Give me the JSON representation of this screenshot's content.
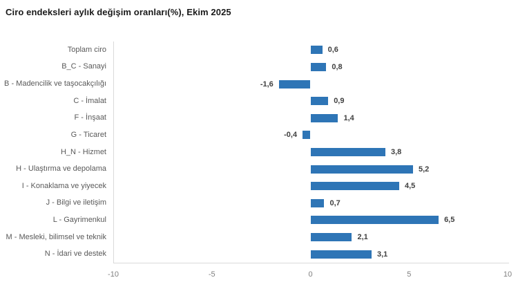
{
  "page": {
    "title": "Ciro endeksleri aylık değişim oranları(%), Ekim 2025"
  },
  "chart_data": {
    "type": "bar",
    "orientation": "horizontal",
    "title": "Ciro endeksleri aylık değişim oranları(%), Ekim 2025",
    "categories": [
      "Toplam ciro",
      "B_C - Sanayi",
      "B - Madencilik ve taşocakçılığı",
      "C - İmalat",
      "F - İnşaat",
      "G - Ticaret",
      "H_N - Hizmet",
      "H - Ulaştırma ve depolama",
      "I - Konaklama ve yiyecek",
      "J - Bilgi ve iletişim",
      "L - Gayrimenkul",
      "M - Mesleki, bilimsel ve teknik",
      "N - İdari ve destek"
    ],
    "values": [
      0.6,
      0.8,
      -1.6,
      0.9,
      1.4,
      -0.4,
      3.8,
      5.2,
      4.5,
      0.7,
      6.5,
      2.1,
      3.1
    ],
    "value_labels": [
      "0,6",
      "0,8",
      "-1,6",
      "0,9",
      "1,4",
      "-0,4",
      "3,8",
      "5,2",
      "4,5",
      "0,7",
      "6,5",
      "2,1",
      "3,1"
    ],
    "xlabel": "",
    "ylabel": "",
    "xlim": [
      -10,
      10
    ],
    "x_ticks": [
      {
        "value": -10,
        "label": "-10"
      },
      {
        "value": -5,
        "label": "-5"
      },
      {
        "value": 0,
        "label": "0"
      },
      {
        "value": 5,
        "label": "5"
      },
      {
        "value": 10,
        "label": "10"
      }
    ],
    "grid": false,
    "legend": false,
    "colors": {
      "bar": "#2e75b6",
      "axis_line": "#d9d9d9",
      "category_label": "#595959",
      "value_label": "#404040",
      "tick_label": "#7f7f7f",
      "title": "#1a1a1a"
    }
  }
}
